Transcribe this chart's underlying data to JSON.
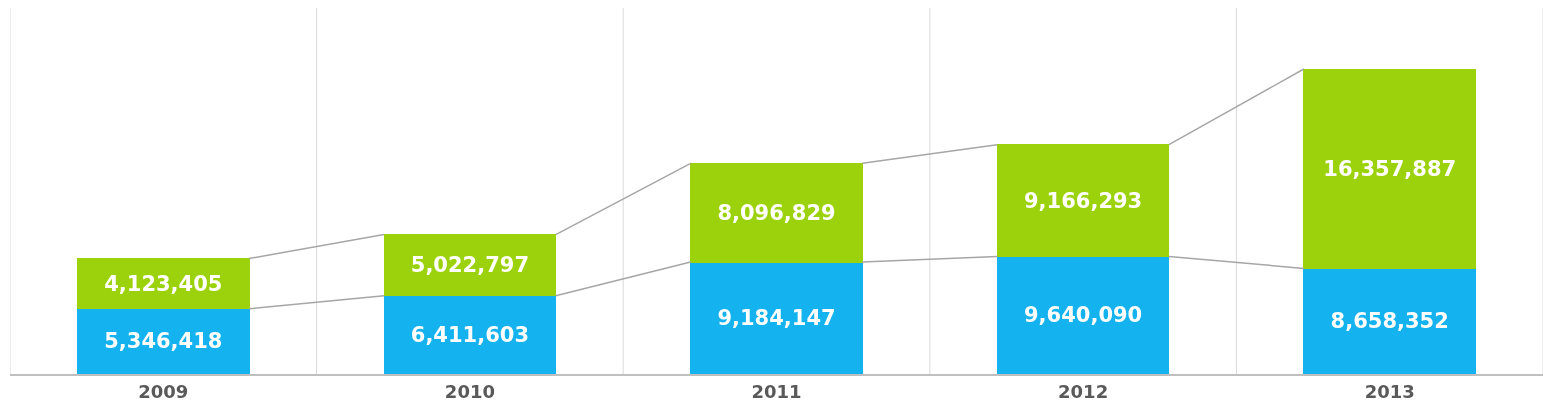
{
  "chart_data": {
    "type": "bar",
    "stacked": true,
    "categories": [
      "2009",
      "2010",
      "2011",
      "2012",
      "2013"
    ],
    "series": [
      {
        "color": "#14b2ee",
        "values": [
          5346418,
          6411603,
          9184147,
          9640090,
          8658352
        ],
        "value_labels": [
          "5,346,418",
          "6,411,603",
          "9,184,147",
          "9,640,090",
          "8,658,352"
        ]
      },
      {
        "color": "#9cd20c",
        "values": [
          4123405,
          5022797,
          8096829,
          9166293,
          16357887
        ],
        "value_labels": [
          "4,123,405",
          "5,022,797",
          "8,096,829",
          "9,166,293",
          "16,357,887"
        ]
      }
    ],
    "grid": "x"
  }
}
